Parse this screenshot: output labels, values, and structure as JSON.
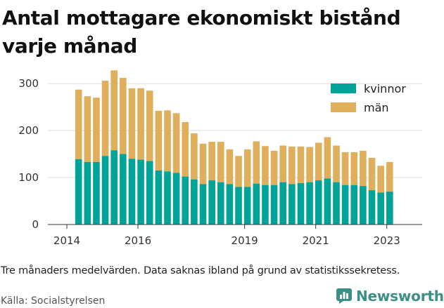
{
  "title_lines": [
    "Antal mottagare ekonomiskt bistånd",
    "varje månad"
  ],
  "caption": "Tre månaders medelvärden. Data saknas ibland på grund av statistikssekretess.",
  "source": "Källa: Socialstyrelsen",
  "brand": {
    "name": "Newsworthy",
    "icon": "bar-chart-logo-icon",
    "color": "#3b8f86"
  },
  "colors": {
    "kvinnor": "#00a398",
    "man": "#dfaf5b",
    "grid": "#dddddd",
    "axis": "#333333"
  },
  "chart_data": {
    "type": "bar",
    "stacked": true,
    "title": "Antal mottagare ekonomiskt bistånd varje månad",
    "xlabel": "",
    "ylabel": "",
    "ylim": [
      0,
      330
    ],
    "yticks": [
      0,
      100,
      200,
      300
    ],
    "xticks": [
      "2014",
      "2016",
      "2019",
      "2021",
      "2023"
    ],
    "x_range": [
      2014.0,
      2023.5
    ],
    "grid": true,
    "legend_position": "top-right",
    "x": [
      2014.33,
      2014.58,
      2014.83,
      2015.08,
      2015.33,
      2015.58,
      2015.83,
      2016.08,
      2016.33,
      2016.58,
      2016.83,
      2017.08,
      2017.33,
      2017.58,
      2017.83,
      2018.08,
      2018.33,
      2018.58,
      2018.83,
      2019.08,
      2019.33,
      2019.58,
      2019.83,
      2020.08,
      2020.33,
      2020.58,
      2020.83,
      2021.08,
      2021.33,
      2021.58,
      2021.83,
      2022.08,
      2022.33,
      2022.58,
      2022.83,
      2023.08
    ],
    "series": [
      {
        "name": "kvinnor",
        "values": [
          139,
          133,
          133,
          146,
          158,
          150,
          140,
          138,
          135,
          115,
          113,
          110,
          102,
          96,
          86,
          94,
          90,
          86,
          80,
          80,
          87,
          84,
          84,
          90,
          86,
          88,
          90,
          94,
          98,
          90,
          84,
          84,
          82,
          73,
          68,
          70
        ]
      },
      {
        "name": "män",
        "values": [
          148,
          140,
          137,
          160,
          170,
          162,
          150,
          152,
          150,
          127,
          130,
          127,
          116,
          98,
          86,
          82,
          86,
          74,
          66,
          80,
          90,
          83,
          73,
          78,
          80,
          78,
          75,
          80,
          88,
          78,
          70,
          70,
          75,
          69,
          57,
          63
        ]
      }
    ]
  }
}
